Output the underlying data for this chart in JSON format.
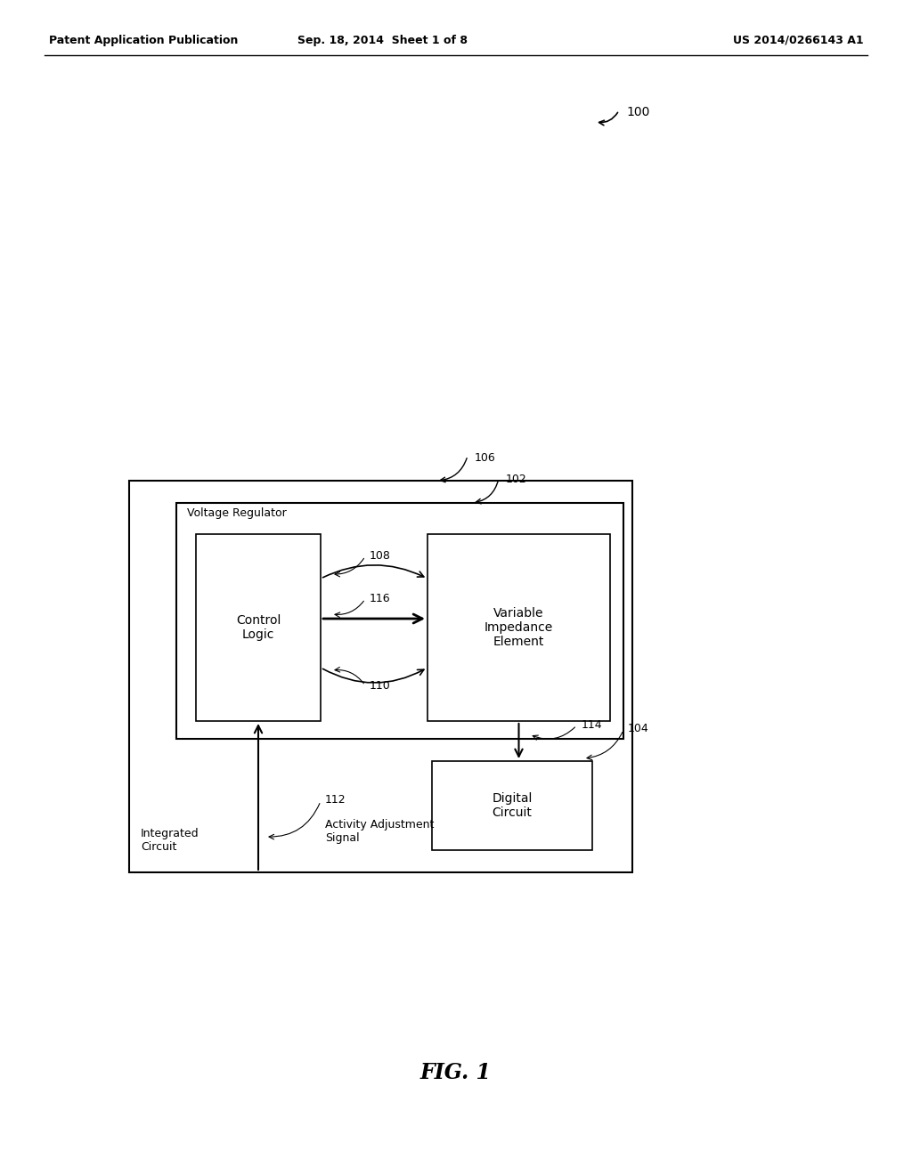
{
  "bg_color": "#ffffff",
  "header_left": "Patent Application Publication",
  "header_center": "Sep. 18, 2014  Sheet 1 of 8",
  "header_right": "US 2014/0266143 A1",
  "fig_label": "FIG. 1",
  "ref_100": "100",
  "ref_106": "106",
  "ref_102": "102",
  "ref_108": "108",
  "ref_116": "116",
  "ref_110": "110",
  "ref_114": "114",
  "ref_104": "104",
  "ref_112": "112",
  "label_vr": "Voltage Regulator",
  "label_cl": "Control\nLogic",
  "label_vie": "Variable\nImpedance\nElement",
  "label_dc": "Digital\nCircuit",
  "label_ic": "Integrated\nCircuit",
  "label_aas": "Activity Adjustment\nSignal"
}
